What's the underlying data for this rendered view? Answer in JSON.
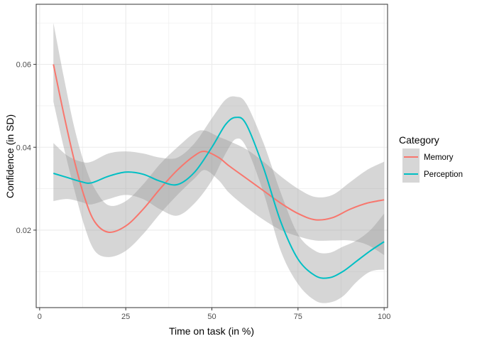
{
  "chart_data": {
    "type": "line",
    "title": "",
    "xlabel": "Time on task (in %)",
    "ylabel": "Confidence (in SD)",
    "xlim": [
      -1,
      101
    ],
    "ylim": [
      0.0013,
      0.0745
    ],
    "xticks": [
      0,
      25,
      50,
      75,
      100
    ],
    "xtick_labels": [
      "0",
      "25",
      "50",
      "75",
      "100"
    ],
    "yticks": [
      0.02,
      0.04,
      0.06
    ],
    "ytick_labels": [
      "0.02",
      "0.04",
      "0.06"
    ],
    "grid": true,
    "legend": {
      "title": "Category",
      "position": "right"
    },
    "band_color": "#999999",
    "series": [
      {
        "name": "Memory",
        "color": "#F8766D",
        "x": [
          4,
          7,
          10,
          13,
          16,
          20,
          25,
          30,
          35,
          40,
          45,
          48,
          52,
          55,
          60,
          65,
          70,
          75,
          80,
          85,
          90,
          95,
          100
        ],
        "y": [
          0.06,
          0.048,
          0.037,
          0.028,
          0.022,
          0.0195,
          0.021,
          0.025,
          0.03,
          0.0345,
          0.038,
          0.039,
          0.0375,
          0.0355,
          0.0325,
          0.0295,
          0.0265,
          0.024,
          0.0225,
          0.023,
          0.025,
          0.0265,
          0.0273
        ],
        "lower": [
          0.051,
          0.04,
          0.03,
          0.021,
          0.015,
          0.0135,
          0.015,
          0.019,
          0.024,
          0.0285,
          0.0325,
          0.0345,
          0.032,
          0.029,
          0.0255,
          0.0225,
          0.02,
          0.0185,
          0.0175,
          0.0175,
          0.0175,
          0.0165,
          0.014
        ],
        "upper": [
          0.07,
          0.057,
          0.045,
          0.036,
          0.03,
          0.026,
          0.027,
          0.031,
          0.036,
          0.04,
          0.0435,
          0.044,
          0.0425,
          0.0415,
          0.0395,
          0.0365,
          0.033,
          0.03,
          0.028,
          0.0285,
          0.0315,
          0.0345,
          0.0365
        ]
      },
      {
        "name": "Perception",
        "color": "#00BFC4",
        "x": [
          4,
          8,
          12,
          15,
          20,
          25,
          30,
          35,
          40,
          45,
          50,
          54,
          57,
          60,
          65,
          70,
          75,
          80,
          84,
          88,
          92,
          96,
          100
        ],
        "y": [
          0.0337,
          0.0327,
          0.0317,
          0.0314,
          0.033,
          0.034,
          0.0335,
          0.0318,
          0.031,
          0.034,
          0.04,
          0.0455,
          0.0472,
          0.0455,
          0.035,
          0.022,
          0.013,
          0.009,
          0.0085,
          0.01,
          0.0125,
          0.015,
          0.0172
        ],
        "lower": [
          0.027,
          0.0275,
          0.0268,
          0.0262,
          0.0275,
          0.0285,
          0.0275,
          0.025,
          0.0235,
          0.0265,
          0.032,
          0.0385,
          0.042,
          0.04,
          0.029,
          0.015,
          0.007,
          0.003,
          0.0025,
          0.004,
          0.0075,
          0.01,
          0.0105
        ],
        "upper": [
          0.041,
          0.038,
          0.0365,
          0.0365,
          0.0385,
          0.039,
          0.0385,
          0.0375,
          0.0375,
          0.041,
          0.047,
          0.0515,
          0.0522,
          0.0505,
          0.041,
          0.029,
          0.019,
          0.015,
          0.0145,
          0.016,
          0.0175,
          0.02,
          0.024
        ]
      }
    ]
  }
}
